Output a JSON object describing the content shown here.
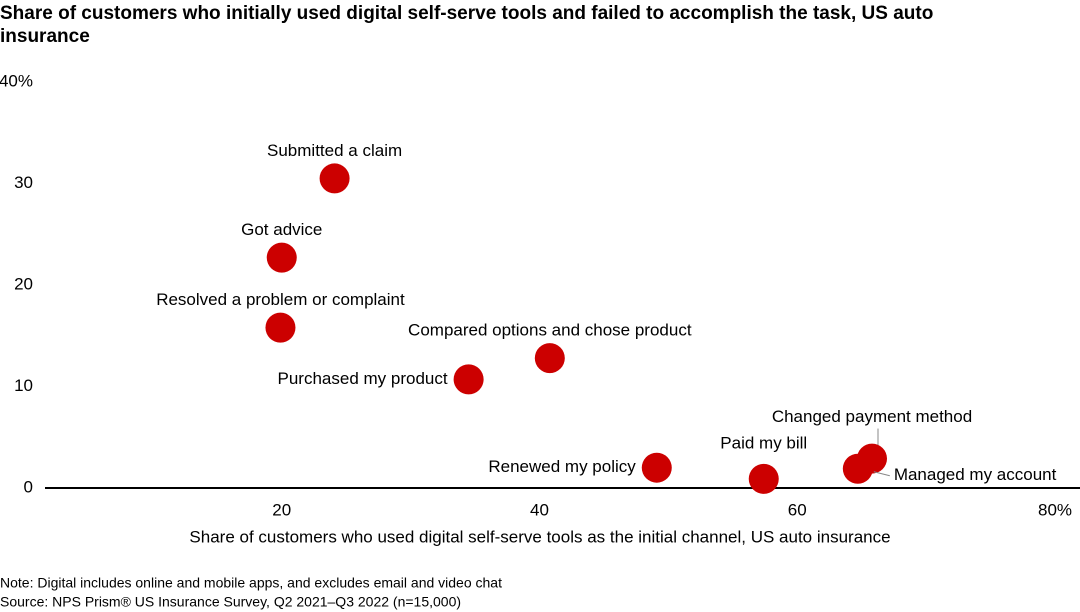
{
  "chart_data": {
    "type": "scatter",
    "title": "Share of customers who initially used digital self-serve tools and failed to accomplish the task, US auto insurance",
    "x_label": "Share of customers who used digital self-serve tools as the initial channel, US auto insurance",
    "labels": [
      "Submitted a claim",
      "Got advice",
      "Resolved a problem or complaint",
      "Compared options and chose product",
      "Purchased my product",
      "Renewed my policy",
      "Paid my bill",
      "Changed payment method",
      "Managed my account"
    ],
    "x": [
      24.1,
      20.0,
      19.9,
      40.8,
      34.5,
      49.1,
      57.4,
      65.8,
      64.7
    ],
    "values": [
      30.5,
      22.7,
      15.8,
      12.8,
      10.7,
      2.0,
      0.9,
      2.9,
      1.9
    ],
    "color": "#cc0000",
    "xlim": [
      0,
      80
    ],
    "xticks": [
      20,
      40,
      60,
      {
        "value": 80,
        "label": "80%"
      }
    ],
    "ylim": [
      0,
      40
    ],
    "yticks": [
      0,
      10,
      20,
      30,
      {
        "value": 40,
        "label": "40%"
      }
    ],
    "grid": false,
    "note": "Note: Digital includes online and mobile apps, and excludes email and video chat",
    "source": "Source: NPS Prism® US Insurance Survey, Q2 2021–Q3 2022 (n=15,000)"
  }
}
